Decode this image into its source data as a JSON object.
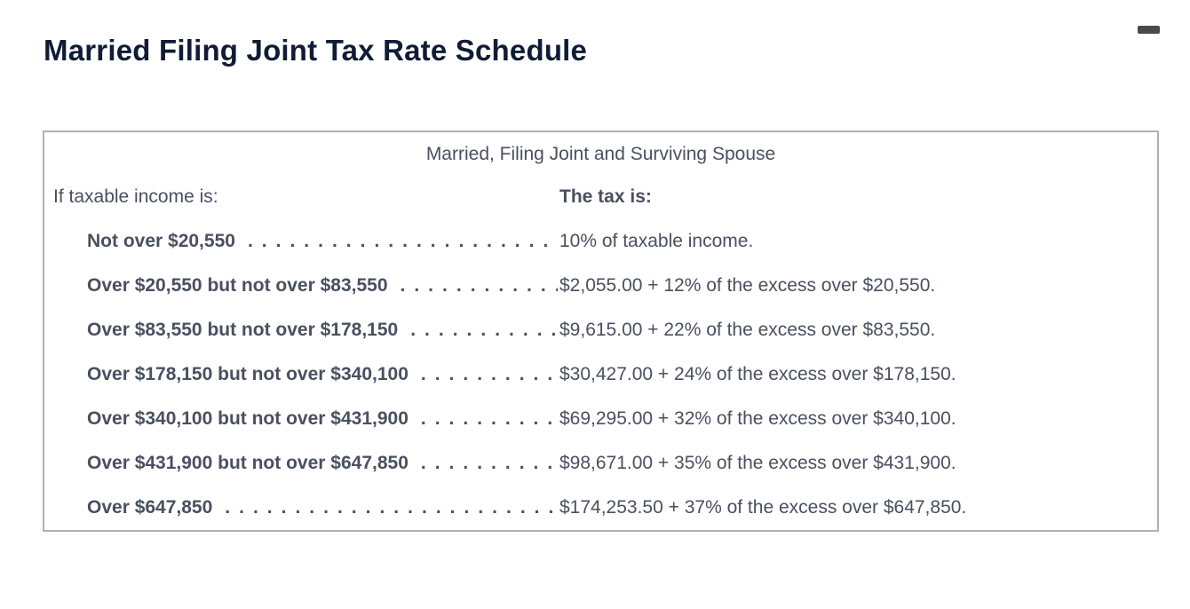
{
  "page": {
    "title": "Married Filing Joint Tax Rate Schedule"
  },
  "icons": {
    "top_right": "minimize-dash"
  },
  "colors": {
    "title": "#101c36",
    "body_text": "#49505f",
    "box_border": "#b1b1b4",
    "dash": "#4a4a4c"
  },
  "schedule": {
    "header": "Married, Filing Joint and Surviving Spouse",
    "income_header": "If taxable income is:",
    "tax_header": "The tax is:",
    "rows": [
      {
        "condition": "Not over $20,550",
        "tax": "10% of taxable income."
      },
      {
        "condition": "Over $20,550 but not over $83,550",
        "tax": "$2,055.00 + 12% of the excess over $20,550."
      },
      {
        "condition": "Over $83,550 but not over $178,150",
        "tax": "$9,615.00 + 22% of the excess over $83,550."
      },
      {
        "condition": "Over $178,150 but not over $340,100",
        "tax": "$30,427.00 + 24% of the excess over $178,150."
      },
      {
        "condition": "Over $340,100 but not over $431,900",
        "tax": "$69,295.00 + 32% of the excess over $340,100."
      },
      {
        "condition": "Over $431,900 but not over $647,850",
        "tax": "$98,671.00 + 35% of the excess over $431,900."
      },
      {
        "condition": "Over $647,850",
        "tax": "$174,253.50 + 37% of the excess over $647,850."
      }
    ]
  }
}
